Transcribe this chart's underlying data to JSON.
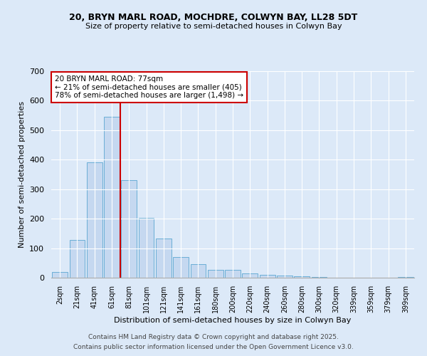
{
  "title1": "20, BRYN MARL ROAD, MOCHDRE, COLWYN BAY, LL28 5DT",
  "title2": "Size of property relative to semi-detached houses in Colwyn Bay",
  "xlabel": "Distribution of semi-detached houses by size in Colwyn Bay",
  "ylabel": "Number of semi-detached properties",
  "categories": [
    "2sqm",
    "21sqm",
    "41sqm",
    "61sqm",
    "81sqm",
    "101sqm",
    "121sqm",
    "141sqm",
    "161sqm",
    "180sqm",
    "200sqm",
    "220sqm",
    "240sqm",
    "260sqm",
    "280sqm",
    "300sqm",
    "320sqm",
    "339sqm",
    "359sqm",
    "379sqm",
    "399sqm"
  ],
  "values": [
    20,
    128,
    390,
    545,
    330,
    203,
    133,
    70,
    45,
    27,
    26,
    15,
    9,
    7,
    4,
    3,
    1,
    0,
    1,
    0,
    2
  ],
  "bar_color": "#c5d8f0",
  "bar_edge_color": "#6aaed6",
  "vline_index": 4,
  "vline_color": "#cc0000",
  "annotation_title": "20 BRYN MARL ROAD: 77sqm",
  "annotation_line1": "← 21% of semi-detached houses are smaller (405)",
  "annotation_line2": "78% of semi-detached houses are larger (1,498) →",
  "annotation_box_color": "#ffffff",
  "annotation_box_edge": "#cc0000",
  "ylim": [
    0,
    700
  ],
  "yticks": [
    0,
    100,
    200,
    300,
    400,
    500,
    600,
    700
  ],
  "footer1": "Contains HM Land Registry data © Crown copyright and database right 2025.",
  "footer2": "Contains public sector information licensed under the Open Government Licence v3.0.",
  "bg_color": "#dce9f8",
  "plot_bg_color": "#dce9f8"
}
